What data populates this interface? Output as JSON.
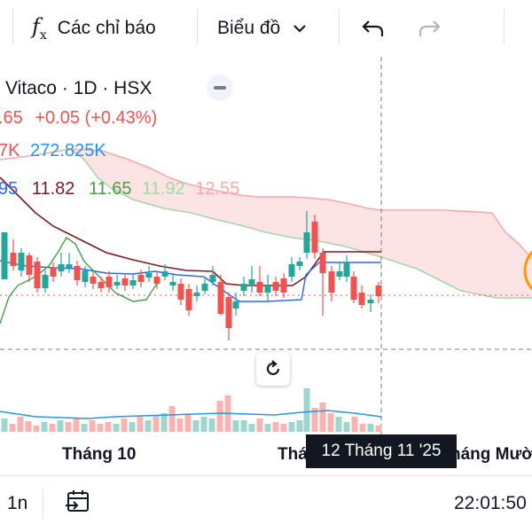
{
  "toolbar": {
    "indicators_label": "Các chỉ báo",
    "chart_type_label": "Biểu đồ"
  },
  "legend": {
    "symbol_line": "Vitaco · 1D · HSX",
    "price_partial": ".65",
    "change": "+0.05 (+0.43%)",
    "volume_partial": "7K",
    "volume_ma": "272.825K",
    "ichimoku_values": [
      "95",
      "11.82",
      "11.65",
      "11.92",
      "12.55"
    ]
  },
  "colors": {
    "up": "#26a69a",
    "down": "#ef5350",
    "conversion": "#2962ff",
    "base": "#801922",
    "lagging": "#43a047",
    "lead_a": "#a5d6a7",
    "lead_b": "#f7a9a7",
    "cloud": "#fde4e4",
    "volume_ma": "#2196f3",
    "accent_orange": "#ff9800"
  },
  "xaxis": {
    "label_october": "Tháng 10",
    "label_left_partial": "Thá",
    "label_right_partial": "háng Mười",
    "crosshair_date": "12 Tháng 11 '25"
  },
  "bottom": {
    "interval_partial": "1n",
    "clock": "22:01:50"
  }
}
